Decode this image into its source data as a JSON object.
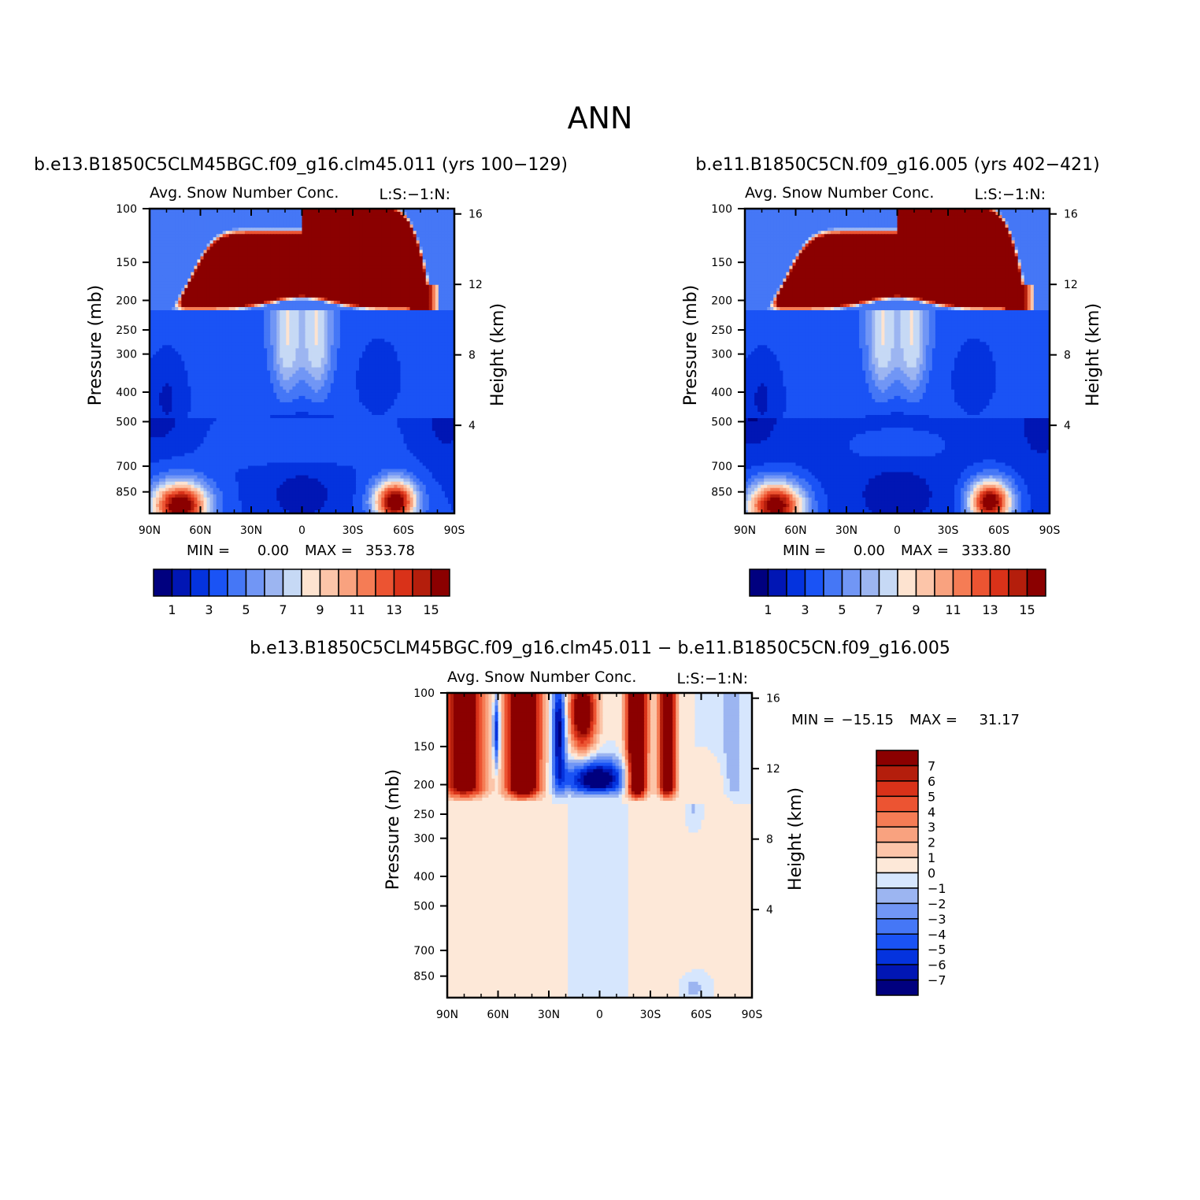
{
  "figure_title": "ANN",
  "colors": {
    "abs_levels": [
      "#00007f",
      "#0116b4",
      "#0433de",
      "#1a53f5",
      "#4577f6",
      "#7196f5",
      "#9cb5f1",
      "#c6d9f5",
      "#fde3d0",
      "#fcc5a9",
      "#f9a27f",
      "#f57c55",
      "#ec5432",
      "#d93219",
      "#b41e0c",
      "#8b0000"
    ],
    "diff_levels": [
      "#00007f",
      "#0116b4",
      "#0433de",
      "#1a53f5",
      "#4577f6",
      "#7196f5",
      "#9cb5f1",
      "#d6e6fd",
      "#fde8d8",
      "#fcc5a9",
      "#f9a27f",
      "#f57c55",
      "#ec5432",
      "#d93219",
      "#b41e0c",
      "#8b0000"
    ]
  },
  "chart_data": [
    {
      "type": "heatmap",
      "case_title": "b.e13.B1850C5CLM45BGC.f09_g16.clm45.011 (yrs 100−129)",
      "variable": "Avg. Snow Number Conc.",
      "units": "L:S:−1:N:",
      "ylabel": "Pressure (mb)",
      "y2label": "Height (km)",
      "xticks": [
        "90N",
        "60N",
        "30N",
        "0",
        "30S",
        "60S",
        "90S"
      ],
      "yticks": [
        "100",
        "150",
        "200",
        "250",
        "300",
        "400",
        "500",
        "700",
        "850"
      ],
      "y2ticks": [
        "16",
        "12",
        "8",
        "4"
      ],
      "stats": {
        "min_label": "MIN =",
        "min": "0.00",
        "max_label": "MAX =",
        "max": "353.78"
      },
      "colorbar_labels": [
        "1",
        "3",
        "5",
        "7",
        "9",
        "11",
        "13",
        "15"
      ],
      "min_value": 0.0,
      "max_value": 353.78
    },
    {
      "type": "heatmap",
      "case_title": "b.e11.B1850C5CN.f09_g16.005 (yrs 402−421)",
      "variable": "Avg. Snow Number Conc.",
      "units": "L:S:−1:N:",
      "ylabel": "Pressure (mb)",
      "y2label": "Height (km)",
      "xticks": [
        "90N",
        "60N",
        "30N",
        "0",
        "30S",
        "60S",
        "90S"
      ],
      "yticks": [
        "100",
        "150",
        "200",
        "250",
        "300",
        "400",
        "500",
        "700",
        "850"
      ],
      "y2ticks": [
        "16",
        "12",
        "8",
        "4"
      ],
      "stats": {
        "min_label": "MIN =",
        "min": "0.00",
        "max_label": "MAX =",
        "max": "333.80"
      },
      "colorbar_labels": [
        "1",
        "3",
        "5",
        "7",
        "9",
        "11",
        "13",
        "15"
      ],
      "min_value": 0.0,
      "max_value": 333.8
    },
    {
      "type": "heatmap",
      "case_title": "b.e13.B1850C5CLM45BGC.f09_g16.clm45.011 − b.e11.B1850C5CN.f09_g16.005",
      "variable": "Avg. Snow Number Conc.",
      "units": "L:S:−1:N:",
      "ylabel": "Pressure (mb)",
      "y2label": "Height (km)",
      "xticks": [
        "90N",
        "60N",
        "30N",
        "0",
        "30S",
        "60S",
        "90S"
      ],
      "yticks": [
        "100",
        "150",
        "200",
        "250",
        "300",
        "400",
        "500",
        "700",
        "850"
      ],
      "y2ticks": [
        "16",
        "12",
        "8",
        "4"
      ],
      "stats": {
        "min_label": "MIN =",
        "min": "−15.15",
        "max_label": "MAX =",
        "max": "31.17"
      },
      "colorbar_labels": [
        "7",
        "6",
        "5",
        "4",
        "3",
        "2",
        "1",
        "0",
        "−1",
        "−2",
        "−3",
        "−4",
        "−5",
        "−6",
        "−7"
      ],
      "min_value": -15.15,
      "max_value": 31.17
    }
  ]
}
